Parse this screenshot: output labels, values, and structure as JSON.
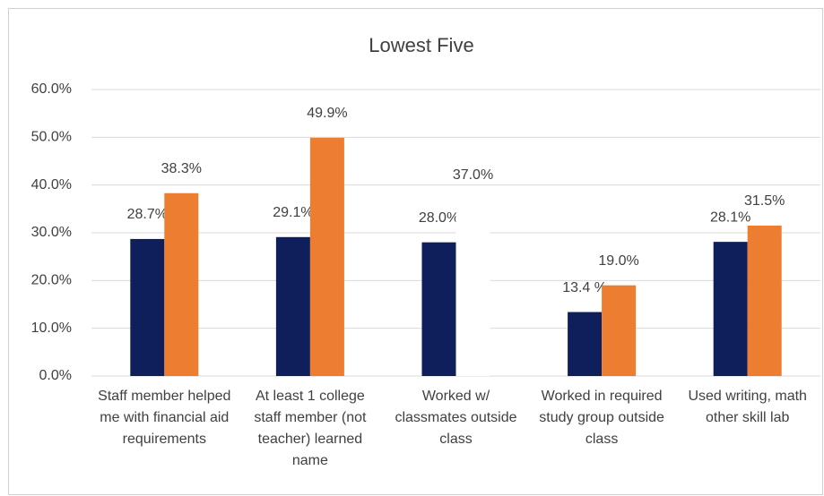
{
  "chart_data": {
    "type": "bar",
    "title": "Lowest Five",
    "categories": [
      "Staff member helped me with financial aid requirements",
      "At least 1 college staff member (not teacher) learned name",
      "Worked w/ classmates outside class",
      "Worked in required study group outside class",
      "Used writing, math other skill lab"
    ],
    "series": [
      {
        "color": "#0e1f5b",
        "values": [
          28.7,
          29.1,
          28.0,
          13.4,
          28.1
        ],
        "value_labels": [
          "28.7%",
          "29.1%",
          "28.0%",
          "13.4 %",
          "28.1%"
        ]
      },
      {
        "color": "#ed7d31",
        "colors": [
          "#ed7d31",
          "#ed7d31",
          "#ffffff",
          "#ed7d31",
          "#ed7d31"
        ],
        "values": [
          38.3,
          49.9,
          37.0,
          19.0,
          31.5
        ],
        "value_labels": [
          "38.3%",
          "49.9%",
          "37.0%",
          "19.0%",
          "31.5%"
        ]
      }
    ],
    "ylim": [
      0,
      60
    ],
    "yticks": [
      {
        "value": 0,
        "label": "0.0%"
      },
      {
        "value": 10,
        "label": "10.0%"
      },
      {
        "value": 20,
        "label": "20.0%"
      },
      {
        "value": 30,
        "label": "30.0%"
      },
      {
        "value": 40,
        "label": "40.0%"
      },
      {
        "value": 50,
        "label": "50.0%"
      },
      {
        "value": 60,
        "label": "60.0%"
      }
    ],
    "grid": true
  }
}
